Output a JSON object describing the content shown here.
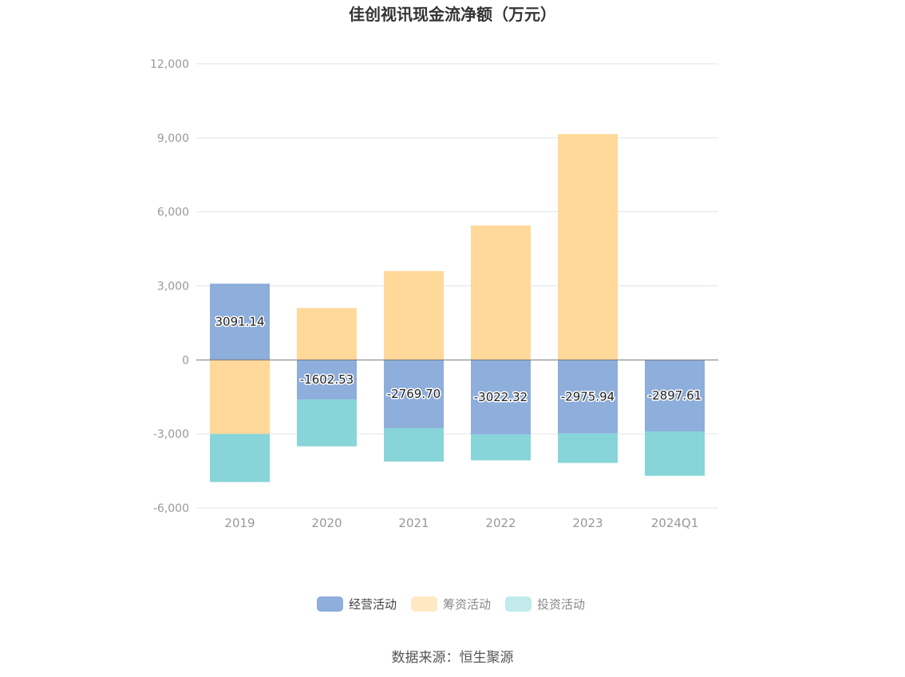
{
  "title": "佳创视讯现金流净额（万元）",
  "source": "数据来源：恒生聚源",
  "colors": {
    "operating": "#8eaedb",
    "financing": "#ffd89a",
    "investing": "#87d5d9",
    "legend_financing": "#ffe8c4",
    "legend_investing": "#c3eaec",
    "grid": "#e0e3ee",
    "zero_line": "#777777"
  },
  "chart_data": {
    "type": "bar",
    "stacked": true,
    "title": "佳创视讯现金流净额（万元）",
    "xlabel": "",
    "ylabel": "",
    "categories": [
      "2019",
      "2020",
      "2021",
      "2022",
      "2023",
      "2024Q1"
    ],
    "ylim": [
      -6000,
      12000
    ],
    "yticks": [
      -6000,
      -3000,
      0,
      3000,
      6000,
      9000,
      12000
    ],
    "ytick_labels": [
      "-6,000",
      "-3,000",
      "0",
      "3,000",
      "6,000",
      "9,000",
      "12,000"
    ],
    "grid": true,
    "legend": "bottom-center",
    "series": [
      {
        "name": "经营活动",
        "key": "operating",
        "values": [
          3091.14,
          -1602.53,
          -2769.7,
          -3022.32,
          -2975.94,
          -2897.61
        ],
        "labels": [
          "3091.14",
          "-1602.53",
          "-2769.70",
          "-3022.32",
          "-2975.94",
          "-2897.61"
        ]
      },
      {
        "name": "筹资活动",
        "key": "financing",
        "values": [
          -3000,
          2100,
          3600,
          5450,
          9150,
          0
        ]
      },
      {
        "name": "投资活动",
        "key": "investing",
        "values": [
          -1950,
          -1900,
          -1350,
          -1050,
          -1200,
          -1800
        ]
      }
    ]
  }
}
